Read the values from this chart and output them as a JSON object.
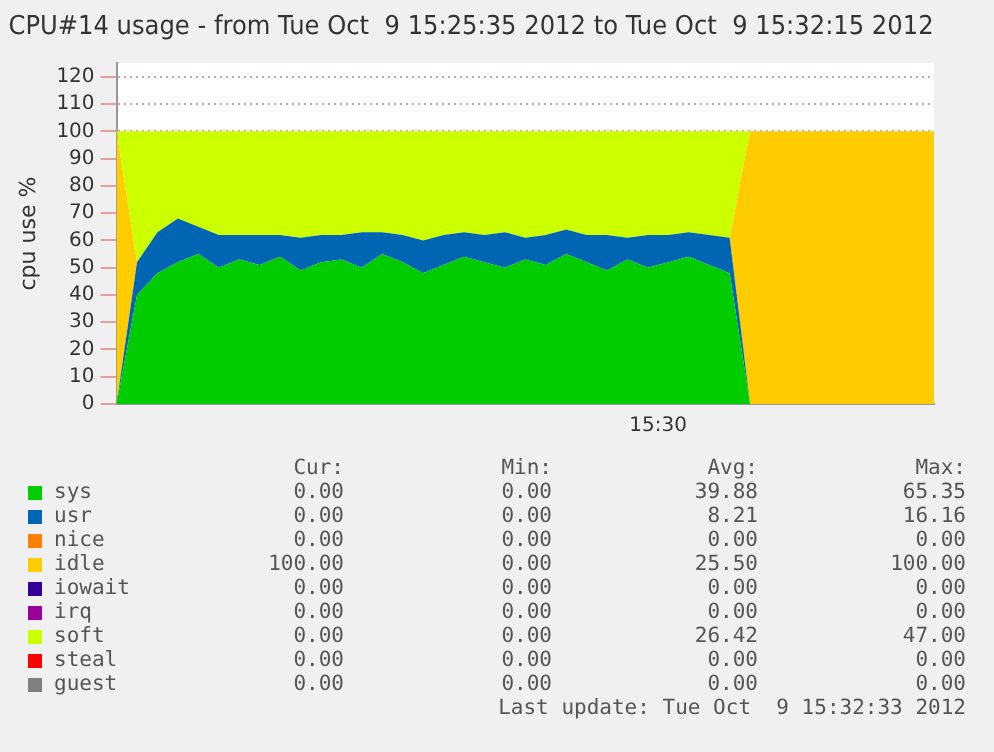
{
  "chart_data": {
    "type": "area",
    "stacked": true,
    "title": "CPU#14 usage - from Tue Oct  9 15:25:35 2012 to Tue Oct  9 15:32:15 2012",
    "ylabel": "cpu use %",
    "categories": [
      null,
      null,
      null,
      null,
      null,
      null,
      null,
      null,
      null,
      null,
      null,
      null,
      null,
      null,
      null,
      null,
      null,
      null,
      null,
      null,
      null,
      null,
      null,
      null,
      null,
      null,
      null,
      null,
      null,
      null,
      null,
      null,
      null,
      null,
      null,
      null,
      null,
      null,
      null,
      null,
      null
    ],
    "series": [
      {
        "name": "sys",
        "color": "#00cc00",
        "values": [
          0,
          40,
          48,
          52,
          55,
          50,
          53,
          51,
          54,
          49,
          52,
          53,
          50,
          55,
          52,
          48,
          51,
          54,
          52,
          50,
          53,
          51,
          55,
          52,
          49,
          53,
          50,
          52,
          54,
          51,
          48,
          0,
          0,
          0,
          0,
          0,
          0,
          0,
          0,
          0,
          0
        ]
      },
      {
        "name": "usr",
        "color": "#0066b3",
        "values": [
          0,
          12,
          15,
          16,
          10,
          12,
          9,
          11,
          8,
          12,
          10,
          9,
          13,
          8,
          10,
          12,
          11,
          9,
          10,
          13,
          8,
          11,
          9,
          10,
          13,
          8,
          12,
          10,
          9,
          11,
          13,
          0,
          0,
          0,
          0,
          0,
          0,
          0,
          0,
          0,
          0
        ]
      },
      {
        "name": "nice",
        "color": "#ff8000",
        "values": [
          null,
          null,
          null,
          null,
          null,
          null,
          null,
          null,
          null,
          null,
          null,
          null,
          null,
          null,
          null,
          null,
          null,
          null,
          null,
          null,
          null,
          null,
          null,
          null,
          null,
          null,
          null,
          null,
          null,
          null,
          null,
          null,
          null,
          null,
          null,
          null,
          null,
          null,
          null,
          null,
          null
        ]
      },
      {
        "name": "idle",
        "color": "#ffcc00",
        "values": [
          100,
          0,
          0,
          0,
          0,
          0,
          0,
          0,
          0,
          0,
          0,
          0,
          0,
          0,
          0,
          0,
          0,
          0,
          0,
          0,
          0,
          0,
          0,
          0,
          0,
          0,
          0,
          0,
          0,
          0,
          0,
          100,
          100,
          100,
          100,
          100,
          100,
          100,
          100,
          100,
          100
        ]
      },
      {
        "name": "iowait",
        "color": "#330099",
        "values": [
          null,
          null,
          null,
          null,
          null,
          null,
          null,
          null,
          null,
          null,
          null,
          null,
          null,
          null,
          null,
          null,
          null,
          null,
          null,
          null,
          null,
          null,
          null,
          null,
          null,
          null,
          null,
          null,
          null,
          null,
          null,
          null,
          null,
          null,
          null,
          null,
          null,
          null,
          null,
          null,
          null
        ]
      },
      {
        "name": "irq",
        "color": "#990099",
        "values": [
          null,
          null,
          null,
          null,
          null,
          null,
          null,
          null,
          null,
          null,
          null,
          null,
          null,
          null,
          null,
          null,
          null,
          null,
          null,
          null,
          null,
          null,
          null,
          null,
          null,
          null,
          null,
          null,
          null,
          null,
          null,
          null,
          null,
          null,
          null,
          null,
          null,
          null,
          null,
          null,
          null
        ]
      },
      {
        "name": "soft",
        "color": "#ccff00",
        "values": [
          0,
          48,
          37,
          32,
          35,
          38,
          38,
          38,
          38,
          39,
          38,
          38,
          37,
          37,
          38,
          40,
          38,
          37,
          38,
          37,
          39,
          38,
          36,
          38,
          38,
          39,
          38,
          38,
          37,
          38,
          39,
          0,
          0,
          0,
          0,
          0,
          0,
          0,
          0,
          0,
          0
        ]
      },
      {
        "name": "steal",
        "color": "#ff0000",
        "values": [
          null,
          null,
          null,
          null,
          null,
          null,
          null,
          null,
          null,
          null,
          null,
          null,
          null,
          null,
          null,
          null,
          null,
          null,
          null,
          null,
          null,
          null,
          null,
          null,
          null,
          null,
          null,
          null,
          null,
          null,
          null,
          null,
          null,
          null,
          null,
          null,
          null,
          null,
          null,
          null,
          null
        ]
      },
      {
        "name": "guest",
        "color": "#808080",
        "values": [
          null,
          null,
          null,
          null,
          null,
          null,
          null,
          null,
          null,
          null,
          null,
          null,
          null,
          null,
          null,
          null,
          null,
          null,
          null,
          null,
          null,
          null,
          null,
          null,
          null,
          null,
          null,
          null,
          null,
          null,
          null,
          null,
          null,
          null,
          null,
          null,
          null,
          null,
          null,
          null,
          null
        ]
      }
    ],
    "ylim": [
      0,
      125
    ],
    "yticks": [
      0,
      10,
      20,
      30,
      40,
      50,
      60,
      70,
      80,
      90,
      100,
      110,
      120
    ],
    "grid": "y",
    "legend": "bottom",
    "marker": "none",
    "annotations": [
      "15:30",
      "Cur:",
      "Min:",
      "Avg:",
      "Max:",
      "0.00",
      "0.00",
      "39.88",
      "65.35",
      "0.00",
      "0.00",
      "8.21",
      "16.16",
      "0.00",
      "0.00",
      "0.00",
      "0.00",
      "100.00",
      "0.00",
      "25.50",
      "100.00",
      "0.00",
      "0.00",
      "0.00",
      "0.00",
      "0.00",
      "0.00",
      "0.00",
      "0.00",
      "0.00",
      "0.00",
      "26.42",
      "47.00",
      "0.00",
      "0.00",
      "0.00",
      "0.00",
      "0.00",
      "0.00",
      "0.00",
      "0.00",
      "Last update: Tue Oct  9 15:32:33 2012"
    ]
  }
}
